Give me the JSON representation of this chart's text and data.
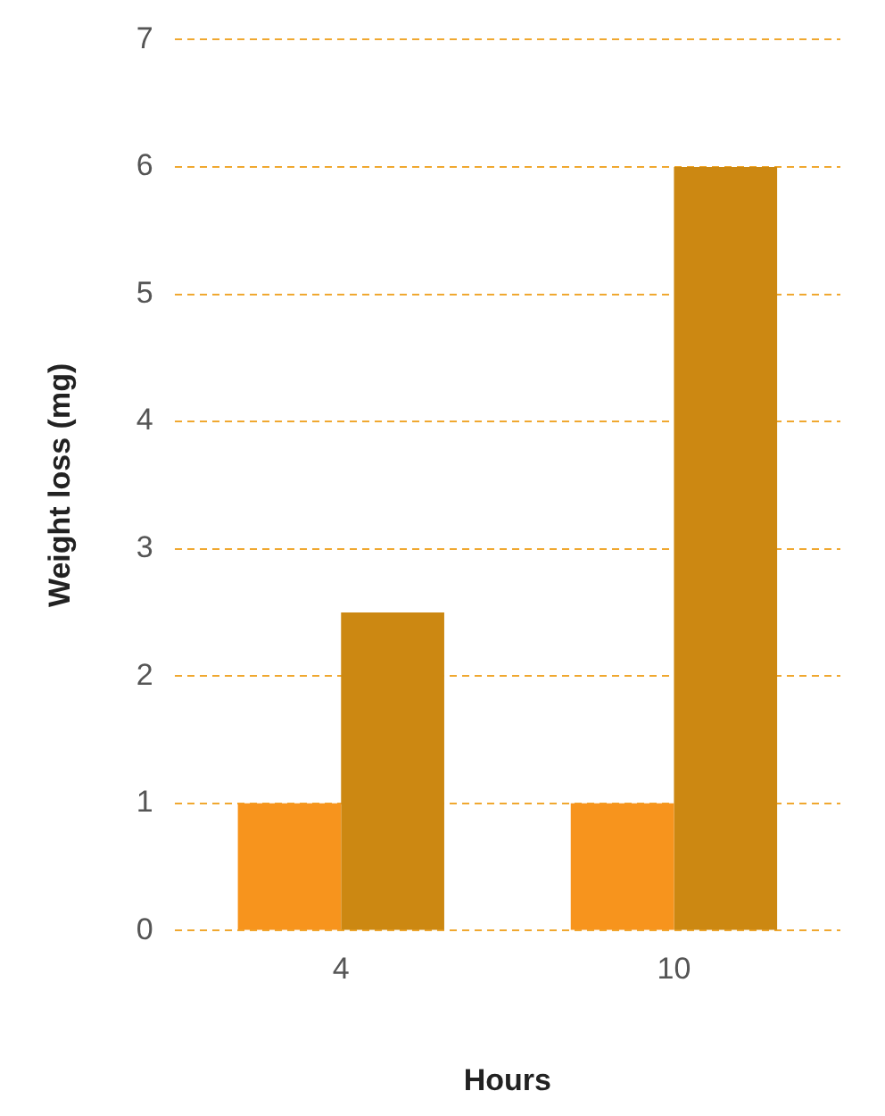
{
  "chart_data": {
    "type": "bar",
    "xlabel": "Hours",
    "ylabel": "Weight loss (mg)",
    "categories": [
      "4",
      "10"
    ],
    "series": [
      {
        "color": "#f7941d",
        "values": [
          1,
          1
        ]
      },
      {
        "color": "#cc8812",
        "values": [
          2.5,
          6
        ]
      }
    ],
    "ylim": [
      0,
      7
    ],
    "yticks": [
      0,
      1,
      2,
      3,
      4,
      5,
      6,
      7
    ],
    "grid": "y",
    "legend": false
  }
}
